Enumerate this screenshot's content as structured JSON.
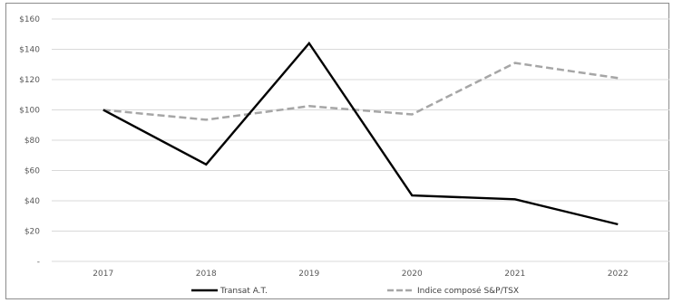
{
  "chart_data": {
    "type": "line",
    "title": "",
    "xlabel": "",
    "ylabel": "",
    "categories": [
      "2017",
      "2018",
      "2019",
      "2020",
      "2021",
      "2022"
    ],
    "ylim": [
      0,
      160
    ],
    "y_ticks": [
      {
        "value": 0,
        "label": "-"
      },
      {
        "value": 20,
        "label": "$20"
      },
      {
        "value": 40,
        "label": "$40"
      },
      {
        "value": 60,
        "label": "$60"
      },
      {
        "value": 80,
        "label": "$80"
      },
      {
        "value": 100,
        "label": "$100"
      },
      {
        "value": 120,
        "label": "$120"
      },
      {
        "value": 140,
        "label": "$140"
      },
      {
        "value": 160,
        "label": "$160"
      }
    ],
    "grid": true,
    "legend_position": "bottom",
    "series": [
      {
        "name": "Transat A.T.",
        "values": [
          100,
          64,
          144,
          43.5,
          41,
          24.5
        ],
        "color": "#000000",
        "dash": "solid"
      },
      {
        "name": "Indice composé S&P/TSX",
        "values": [
          100,
          93.5,
          102.5,
          97,
          131,
          121
        ],
        "color": "#a6a6a6",
        "dash": "dashed"
      }
    ]
  }
}
